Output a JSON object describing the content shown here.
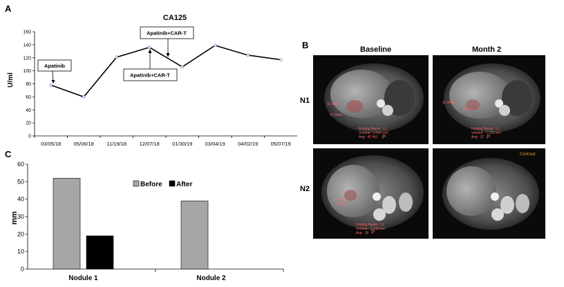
{
  "panel_labels": {
    "a": "A",
    "b": "B",
    "c": "C"
  },
  "chart_data": [
    {
      "type": "line",
      "title": "CA125",
      "ylabel": "U/ml",
      "xlabel": "",
      "x": [
        "03/05/18",
        "05/06/18",
        "11/19/18",
        "12/07/18",
        "01/30/19",
        "03/04/19",
        "04/02/19",
        "05/07/19"
      ],
      "y": [
        78,
        60,
        121,
        136,
        106,
        139,
        124,
        117
      ],
      "ylim": [
        0,
        160
      ],
      "yticks": [
        0,
        20,
        40,
        60,
        80,
        100,
        120,
        140,
        160
      ],
      "grid": false,
      "annotations": [
        {
          "text": "Apatinib",
          "point_index": 0
        },
        {
          "text": "Apatinib+CAR-T",
          "point_index": 3
        },
        {
          "text": "Apatinib+CAR-T",
          "point_index": 3
        }
      ]
    },
    {
      "type": "bar",
      "title": "",
      "ylabel": "mm",
      "xlabel": "",
      "categories": [
        "Nodule 1",
        "Nodule 2"
      ],
      "series": [
        {
          "name": "Before",
          "values": [
            52,
            39
          ],
          "color": "#a6a6a6"
        },
        {
          "name": "After",
          "values": [
            19,
            0
          ],
          "color": "#000000"
        }
      ],
      "ylim": [
        0,
        60
      ],
      "yticks": [
        0,
        10,
        20,
        30,
        40,
        50,
        60
      ],
      "legend": "top-center"
    }
  ],
  "mri": {
    "columns": [
      "Baseline",
      "Month 2"
    ],
    "rows": [
      "N1",
      "N2"
    ],
    "overlays": {
      "n1_baseline": {
        "meas_a": "11.8mm",
        "meas_b": "10.9mm",
        "line1": "Finding Name : L1",
        "line2": "Volume : 0.642 cm³",
        "line3": "Avg : 42 HU",
        "marker": "P"
      },
      "n1_month2": {
        "meas_a": "11.9mm",
        "meas_b": "12mm",
        "line1": "Finding Name : L1",
        "line2": "Volume : 7.725 cm³",
        "line3": "Avg : 37",
        "marker": "P"
      },
      "n2_baseline": {
        "meas_a": "13.5mm",
        "meas_b": "12.8mm",
        "line1": "Finding Name : L2",
        "line2": "Volume : 2.732 cm³",
        "line3": "Avg : 18",
        "marker": "P"
      },
      "n2_month2": {
        "tag": "Contrast"
      }
    },
    "colors": {
      "annotation": "#ff6a6a",
      "contrast_tag": "#e8a020"
    }
  }
}
